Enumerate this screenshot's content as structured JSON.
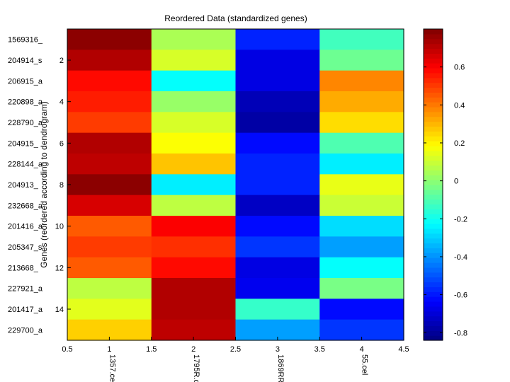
{
  "chart_data": {
    "type": "heatmap",
    "title": "Reordered Data (standardized genes)",
    "ylabel": "Genes (reordered according to dendrogram)",
    "xlabel": "",
    "x_ticks": [
      "0.5",
      "1",
      "1.5",
      "2",
      "2.5",
      "3",
      "3.5",
      "4",
      "4.5"
    ],
    "y_ticks": [
      "2",
      "4",
      "6",
      "8",
      "10",
      "12",
      "14"
    ],
    "columns": [
      "1357.cel",
      "1795R.c",
      "1869RR",
      "55.cel"
    ],
    "rows": [
      "1569316_",
      "204914_s",
      "206915_a",
      "220898_a",
      "228790_a",
      "204915_",
      "228144_a",
      "204913_",
      "232668_a",
      "201416_a",
      "205347_s",
      "213668_",
      "227921_a",
      "201417_a",
      "229700_a"
    ],
    "values": [
      [
        0.78,
        0.05,
        -0.58,
        -0.12
      ],
      [
        0.72,
        0.12,
        -0.68,
        -0.05
      ],
      [
        0.58,
        -0.22,
        -0.68,
        0.38
      ],
      [
        0.55,
        0.02,
        -0.75,
        0.32
      ],
      [
        0.5,
        0.12,
        -0.78,
        0.24
      ],
      [
        0.72,
        0.18,
        -0.62,
        -0.1
      ],
      [
        0.7,
        0.28,
        -0.58,
        -0.25
      ],
      [
        0.78,
        -0.25,
        -0.58,
        0.15
      ],
      [
        0.66,
        0.08,
        -0.73,
        0.1
      ],
      [
        0.45,
        0.6,
        -0.62,
        -0.28
      ],
      [
        0.5,
        0.52,
        -0.55,
        -0.38
      ],
      [
        0.45,
        0.58,
        -0.68,
        -0.22
      ],
      [
        0.08,
        0.72,
        -0.66,
        -0.03
      ],
      [
        0.14,
        0.72,
        -0.14,
        -0.62
      ],
      [
        0.26,
        0.7,
        -0.38,
        -0.55
      ]
    ],
    "colorbar": {
      "range": [
        -0.84,
        0.8
      ],
      "ticks": [
        0.6,
        0.4,
        0.2,
        0,
        -0.2,
        -0.4,
        -0.6,
        -0.8
      ],
      "tick_labels": [
        "0.6",
        "0.4",
        "0.2",
        "0",
        "-0.2",
        "-0.4",
        "-0.6",
        "-0.8"
      ],
      "colormap": "jet"
    }
  }
}
